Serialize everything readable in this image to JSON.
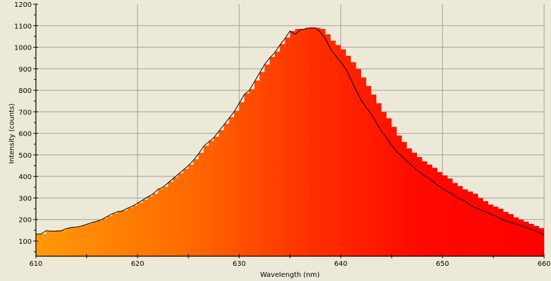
{
  "chart_data": {
    "type": "area",
    "title": "",
    "xlabel": "Wavelength (nm)",
    "ylabel": "Intensity (counts)",
    "xlim": [
      610,
      660
    ],
    "ylim": [
      30,
      1200
    ],
    "x_ticks": [
      610,
      620,
      630,
      640,
      650,
      660
    ],
    "y_ticks": [
      100,
      200,
      300,
      400,
      500,
      600,
      700,
      800,
      900,
      1000,
      1100,
      1200
    ],
    "grid": true,
    "legend": null,
    "fill_gradient": [
      "#ff9a00",
      "#ff5a00",
      "#ff2a00",
      "#ff0000"
    ],
    "line_color": "#000000",
    "background": "#ece9d8",
    "x": [
      610,
      610.5,
      611,
      611.5,
      612,
      612.5,
      613,
      613.5,
      614,
      614.5,
      615,
      615.5,
      616,
      616.5,
      617,
      617.5,
      618,
      618.5,
      619,
      619.5,
      620,
      620.5,
      621,
      621.5,
      622,
      622.5,
      623,
      623.5,
      624,
      624.5,
      625,
      625.5,
      626,
      626.5,
      627,
      627.5,
      628,
      628.5,
      629,
      629.5,
      630,
      630.5,
      631,
      631.5,
      632,
      632.5,
      633,
      633.5,
      634,
      634.5,
      635,
      635.5,
      636,
      636.5,
      637,
      637.5,
      638,
      638.5,
      639,
      639.5,
      640,
      640.5,
      641,
      641.5,
      642,
      642.5,
      643,
      643.5,
      644,
      644.5,
      645,
      645.5,
      646,
      646.5,
      647,
      647.5,
      648,
      648.5,
      649,
      649.5,
      650,
      650.5,
      651,
      651.5,
      652,
      652.5,
      653,
      653.5,
      654,
      654.5,
      655,
      655.5,
      656,
      656.5,
      657,
      657.5,
      658,
      658.5,
      659,
      659.5,
      660
    ],
    "series": [
      {
        "name": "Line",
        "values": [
          132,
          133,
          148,
          146,
          146,
          148,
          158,
          163,
          165,
          170,
          178,
          186,
          192,
          200,
          214,
          226,
          236,
          240,
          252,
          262,
          276,
          290,
          305,
          318,
          340,
          350,
          370,
          390,
          410,
          430,
          450,
          475,
          505,
          540,
          560,
          580,
          610,
          640,
          670,
          700,
          740,
          780,
          800,
          840,
          880,
          920,
          950,
          975,
          1010,
          1040,
          1075,
          1060,
          1080,
          1085,
          1090,
          1090,
          1070,
          1040,
          990,
          960,
          930,
          900,
          850,
          800,
          755,
          720,
          690,
          650,
          610,
          580,
          545,
          515,
          495,
          470,
          450,
          430,
          410,
          395,
          380,
          360,
          345,
          330,
          318,
          300,
          290,
          275,
          260,
          250,
          240,
          230,
          220,
          210,
          198,
          190,
          182,
          175,
          168,
          160,
          150,
          140,
          128
        ]
      },
      {
        "name": "Bars",
        "values": [
          132,
          133,
          148,
          148,
          150,
          150,
          160,
          163,
          165,
          172,
          180,
          188,
          195,
          205,
          216,
          228,
          238,
          242,
          255,
          265,
          278,
          292,
          308,
          320,
          342,
          352,
          375,
          395,
          415,
          435,
          455,
          480,
          510,
          542,
          565,
          585,
          615,
          645,
          675,
          705,
          745,
          785,
          805,
          845,
          885,
          920,
          955,
          980,
          1015,
          1045,
          1075,
          1085,
          1085,
          1090,
          1090,
          1090,
          1085,
          1060,
          1030,
          1010,
          990,
          960,
          930,
          900,
          860,
          820,
          780,
          740,
          700,
          670,
          630,
          590,
          560,
          530,
          510,
          490,
          470,
          455,
          440,
          420,
          405,
          390,
          370,
          355,
          340,
          330,
          320,
          300,
          285,
          270,
          260,
          250,
          235,
          225,
          210,
          200,
          190,
          180,
          170,
          160,
          140
        ]
      }
    ]
  }
}
